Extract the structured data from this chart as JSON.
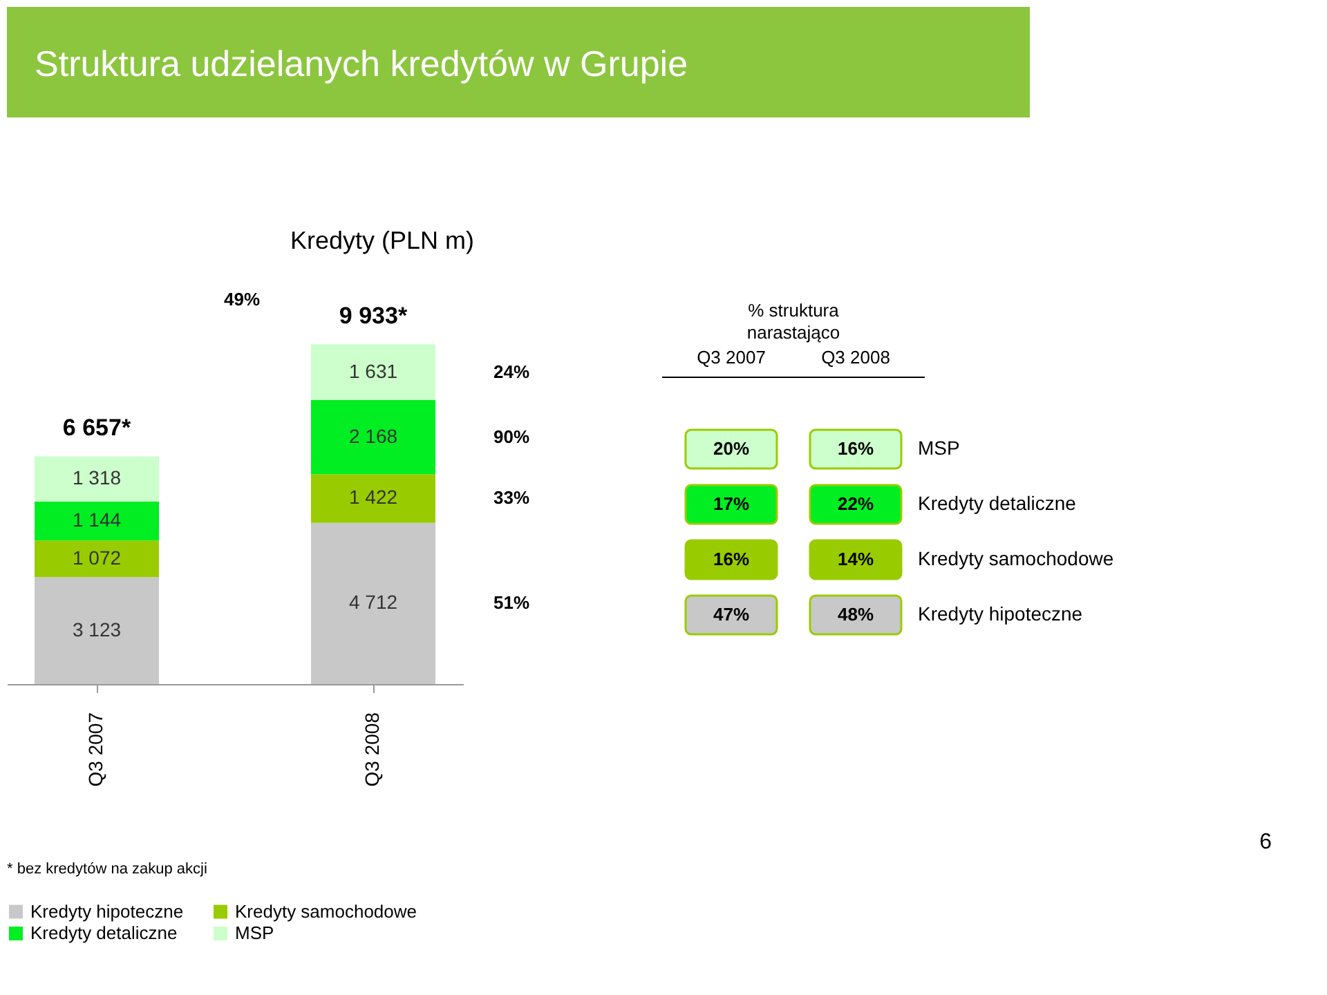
{
  "chart_data": {
    "type": "bar",
    "title": "Struktura udzielanych kredytów w Grupie",
    "subtitle": "Kredyty (PLN m)",
    "categories": [
      "Q3 2007",
      "Q3 2008"
    ],
    "stacked": true,
    "legend": "bottom",
    "series": [
      {
        "name": "Kredyty hipoteczne",
        "color": "#c8c8c8",
        "values": [
          3123,
          4712
        ],
        "value_labels": [
          "3 123",
          "4 712"
        ]
      },
      {
        "name": "Kredyty samochodowe",
        "color": "#99cc00",
        "values": [
          1072,
          1422
        ],
        "value_labels": [
          "1 072",
          "1 422"
        ]
      },
      {
        "name": "Kredyty detaliczne",
        "color": "#00ee22",
        "values": [
          1144,
          2168
        ],
        "value_labels": [
          "1 144",
          "2 168"
        ]
      },
      {
        "name": "MSP",
        "color": "#ccffcc",
        "values": [
          1318,
          1631
        ],
        "value_labels": [
          "1 318",
          "1 631"
        ]
      }
    ],
    "totals": [
      "6 657*",
      "9 933*"
    ],
    "annotations": [
      "49%",
      "51%",
      "33%",
      "90%",
      "24%",
      "% struktura",
      "narastająco",
      "Q3 2007",
      "Q3 2008",
      "47%",
      "48%",
      "16%",
      "14%",
      "17%",
      "22%",
      "20%",
      "16%",
      "* bez kredytów na zakup akcji",
      "6"
    ]
  }
}
